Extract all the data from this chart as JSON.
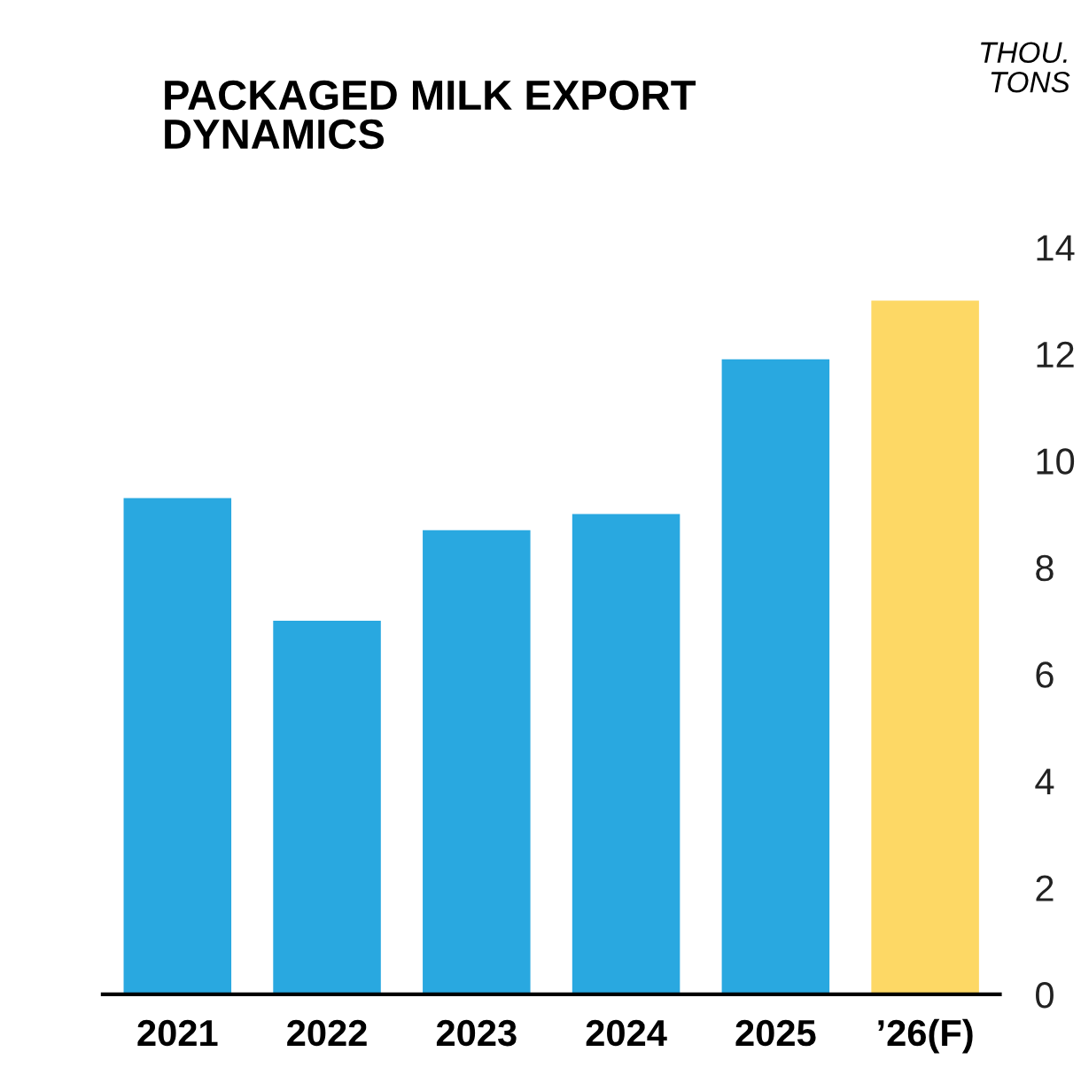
{
  "chart_data": {
    "type": "bar",
    "title": "PACKAGED MILK EXPORT\nDYNAMICS",
    "ylabel": "THOU.\nTONS",
    "categories": [
      "2021",
      "2022",
      "2023",
      "2024",
      "2025",
      "’26(F)"
    ],
    "values": [
      9.3,
      7.0,
      8.7,
      9.0,
      11.9,
      13.0
    ],
    "colors": [
      "#29a8e0",
      "#29a8e0",
      "#29a8e0",
      "#29a8e0",
      "#29a8e0",
      "#fdd865"
    ],
    "ylim": [
      0,
      14
    ],
    "yticks": [
      0,
      2,
      4,
      6,
      8,
      10,
      12,
      14
    ],
    "grid": false,
    "legend": false
  }
}
